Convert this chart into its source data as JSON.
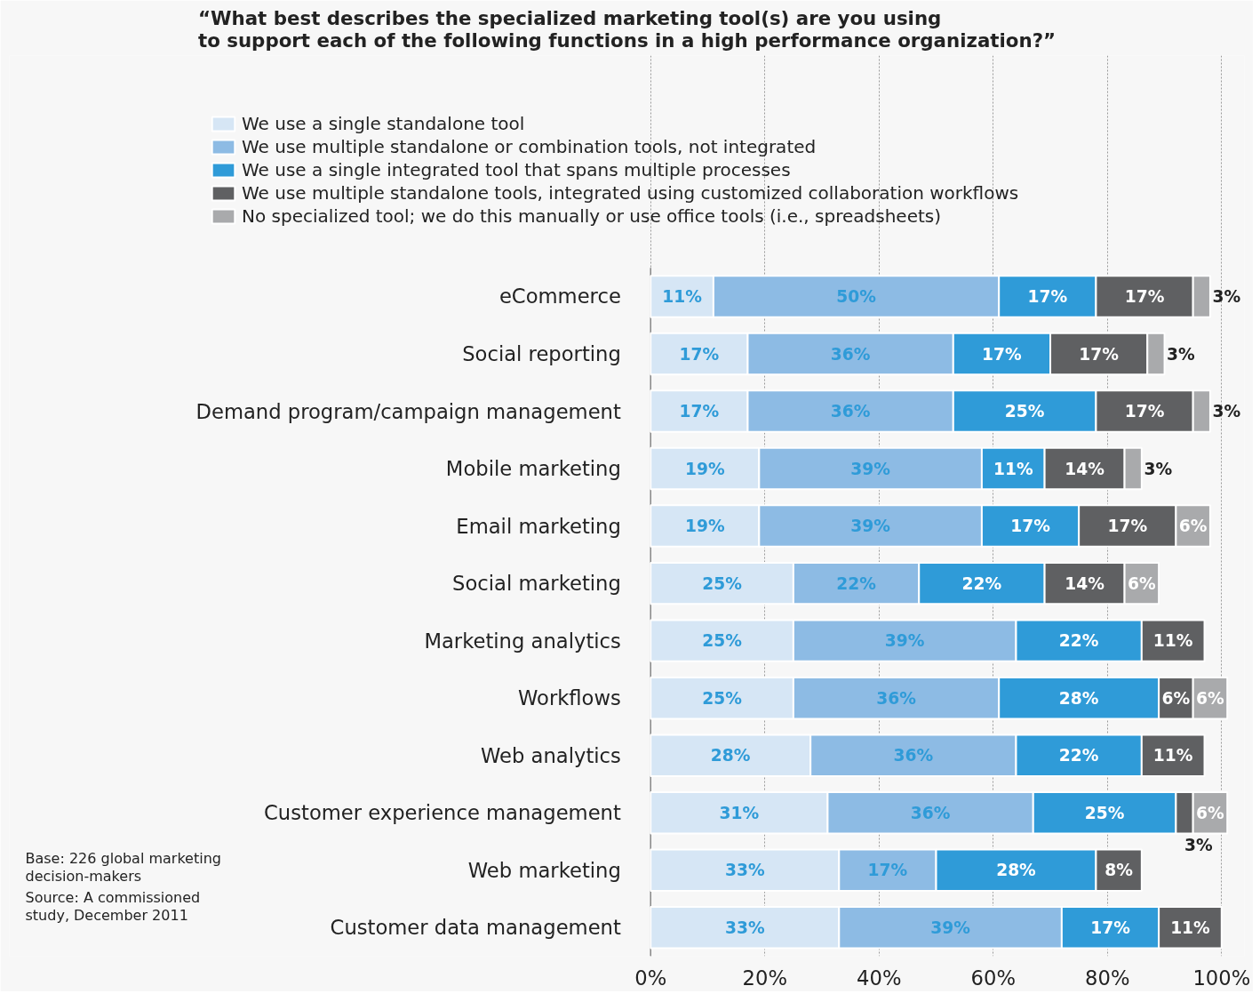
{
  "chart_data": {
    "type": "bar",
    "orientation": "horizontal",
    "stacked": true,
    "title": "“What best describes the specialized marketing tool(s) are you using\nto support each of the following functions in a high performance organization?”",
    "categories": [
      "eCommerce",
      "Social reporting",
      "Demand program/campaign management",
      "Mobile marketing",
      "Email marketing",
      "Social marketing",
      "Marketing analytics",
      "Workflows",
      "Web analytics",
      "Customer experience management",
      "Web marketing",
      "Customer data management"
    ],
    "series": [
      {
        "name": "We use a single standalone tool",
        "color": "#d6e6f5",
        "values": [
          11,
          17,
          17,
          19,
          19,
          25,
          25,
          25,
          28,
          31,
          33,
          33
        ],
        "value_labels": [
          "11%",
          "17%",
          "17%",
          "19%",
          "19%",
          "25%",
          "25%",
          "25%",
          "28%",
          "31%",
          "33%",
          "33%"
        ]
      },
      {
        "name": "We use multiple standalone or combination tools, not integrated",
        "color": "#8dbbe4",
        "values": [
          50,
          36,
          36,
          39,
          39,
          22,
          39,
          36,
          36,
          36,
          17,
          39
        ],
        "value_labels": [
          "50%",
          "36%",
          "36%",
          "39%",
          "39%",
          "22%",
          "39%",
          "36%",
          "36%",
          "36%",
          "17%",
          "39%"
        ]
      },
      {
        "name": "We use a single integrated tool that spans multiple processes",
        "color": "#2f9bd8",
        "values": [
          17,
          17,
          25,
          11,
          17,
          22,
          22,
          28,
          22,
          25,
          28,
          17
        ],
        "value_labels": [
          "17%",
          "17%",
          "25%",
          "11%",
          "17%",
          "22%",
          "22%",
          "28%",
          "22%",
          "25%",
          "28%",
          "17%"
        ]
      },
      {
        "name": "We use multiple standalone tools, integrated using customized collaboration workflows",
        "color": "#5f6062",
        "values": [
          17,
          17,
          17,
          14,
          17,
          14,
          11,
          6,
          11,
          3,
          8,
          11
        ],
        "value_labels": [
          "17%",
          "17%",
          "17%",
          "14%",
          "17%",
          "14%",
          "11%",
          "6%",
          "11%",
          "3%",
          "8%",
          "11%"
        ]
      },
      {
        "name": "No specialized tool; we do this manually or use office tools (i.e., spreadsheets)",
        "color": "#a9aaac",
        "values": [
          3,
          3,
          3,
          3,
          6,
          6,
          null,
          6,
          null,
          6,
          null,
          null
        ],
        "value_labels": [
          "3%",
          "3%",
          "3%",
          "3%",
          "6%",
          "6%",
          null,
          "6%",
          null,
          "6%",
          null,
          null
        ]
      }
    ],
    "xlim": [
      0,
      104
    ],
    "xticks": [
      {
        "value": 0,
        "label": "0%"
      },
      {
        "value": 20,
        "label": "20%"
      },
      {
        "value": 40,
        "label": "40%"
      },
      {
        "value": 60,
        "label": "60%"
      },
      {
        "value": 80,
        "label": "80%"
      },
      {
        "value": 100,
        "label": "100%"
      }
    ],
    "grid": "x",
    "legend": "top",
    "annotations": [
      "Base: 226 global marketing decision-makers",
      "Source: A commissioned study, December 2011"
    ]
  }
}
